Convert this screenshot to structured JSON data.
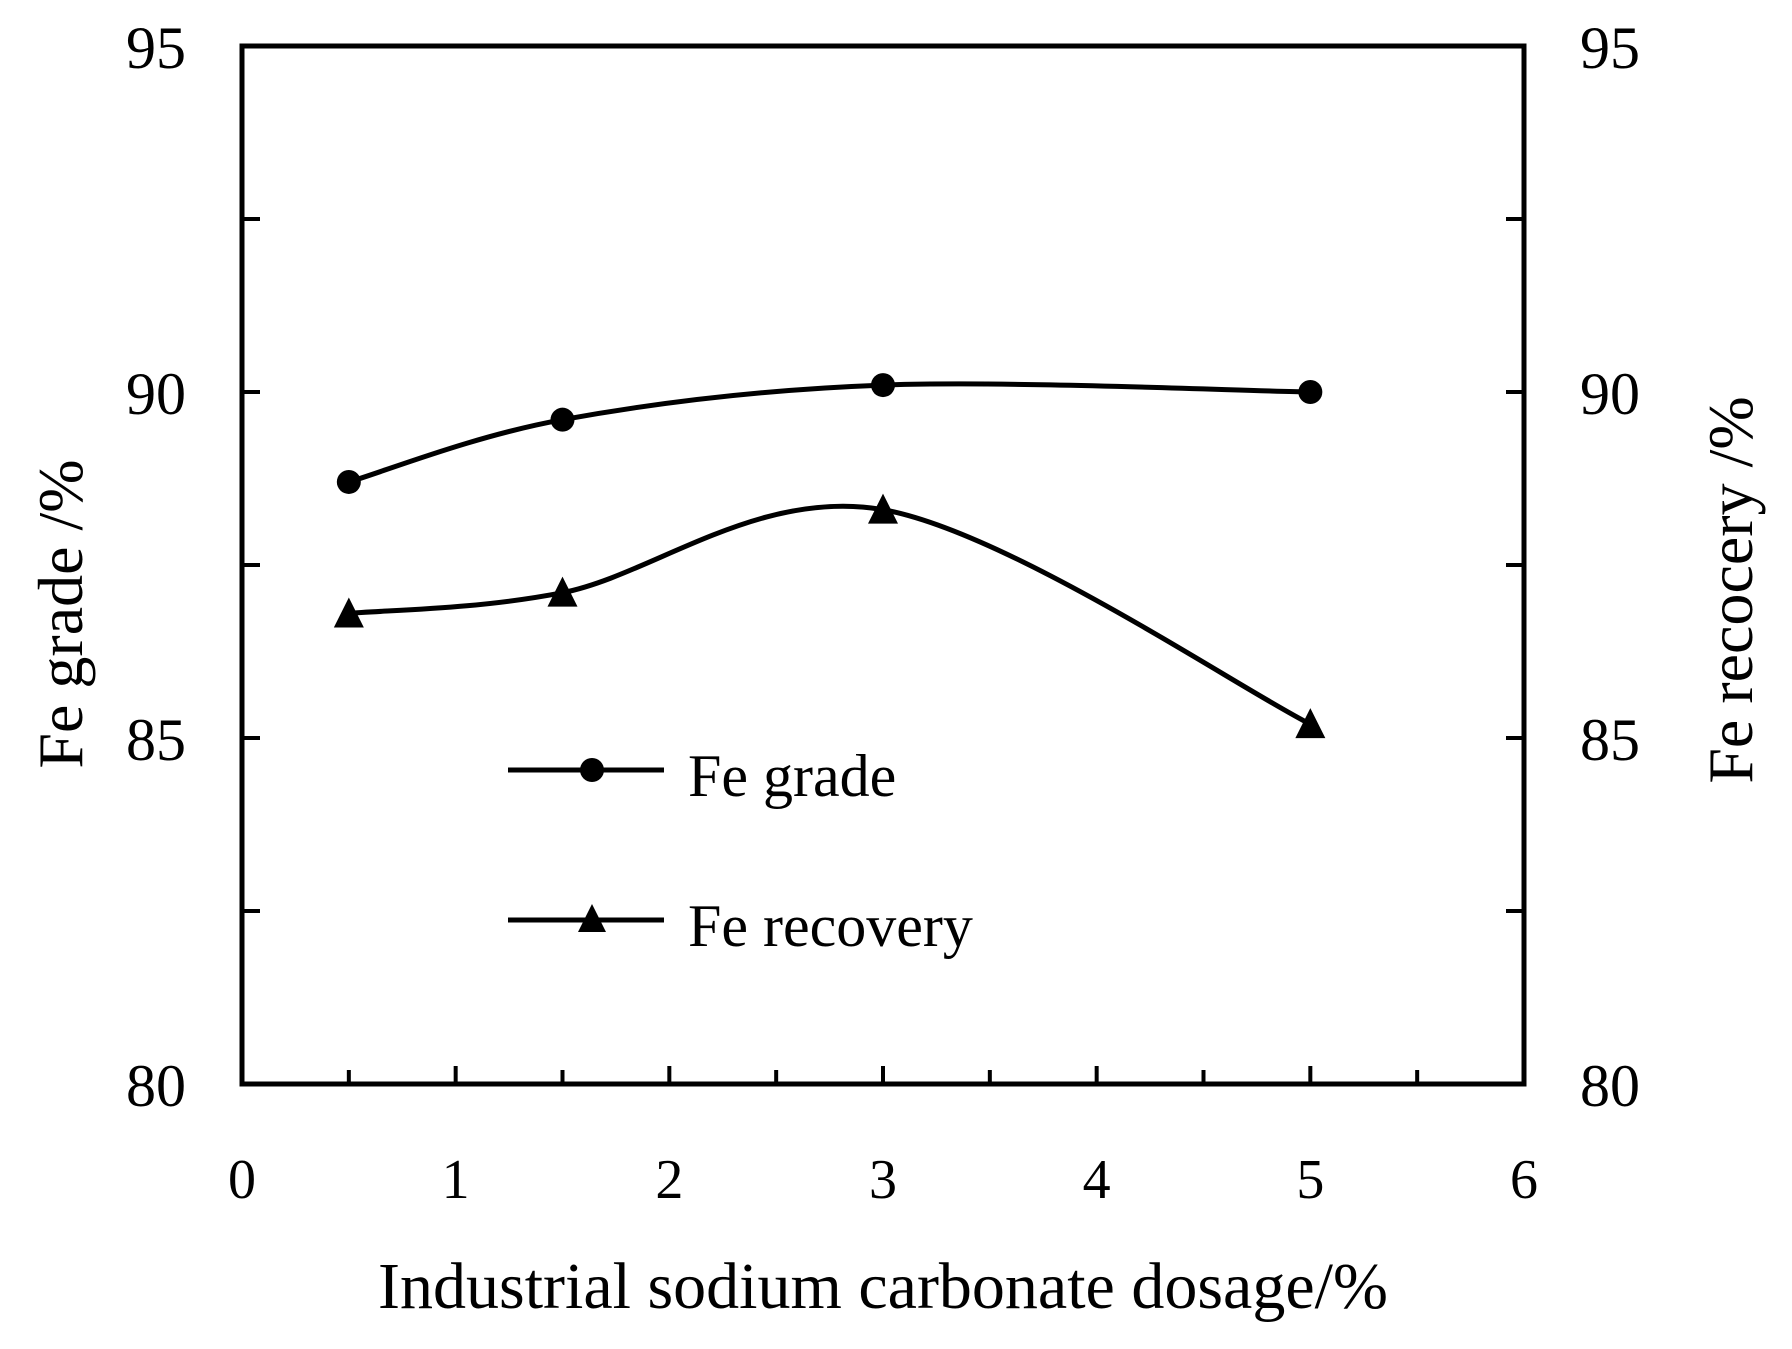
{
  "chart_data": {
    "type": "line",
    "title": "",
    "xlabel": "Industrial sodium carbonate dosage/%",
    "ylabel_left": "Fe grade /%",
    "ylabel_right": "Fe recocery /%",
    "xlim": [
      0,
      6
    ],
    "ylim_left": [
      80,
      95
    ],
    "ylim_right": [
      80,
      95
    ],
    "x_ticks": [
      "0",
      "1",
      "2",
      "3",
      "4",
      "5",
      "6"
    ],
    "y_ticks_left": [
      "80",
      "85",
      "90",
      "95"
    ],
    "y_ticks_right": [
      "80",
      "85",
      "90",
      "95"
    ],
    "grid": false,
    "legend_position": "center-left",
    "smooth": true,
    "series": [
      {
        "name": "Fe grade",
        "marker": "circle",
        "axis": "left",
        "x": [
          0.5,
          1.5,
          3,
          5
        ],
        "y": [
          88.7,
          89.6,
          90.1,
          90.0
        ]
      },
      {
        "name": "Fe recovery",
        "marker": "triangle",
        "axis": "right",
        "x": [
          0.5,
          1.5,
          3,
          5
        ],
        "y": [
          86.8,
          87.1,
          88.3,
          85.2
        ]
      }
    ],
    "colors": {
      "line": "#000000",
      "background": "#ffffff"
    }
  }
}
